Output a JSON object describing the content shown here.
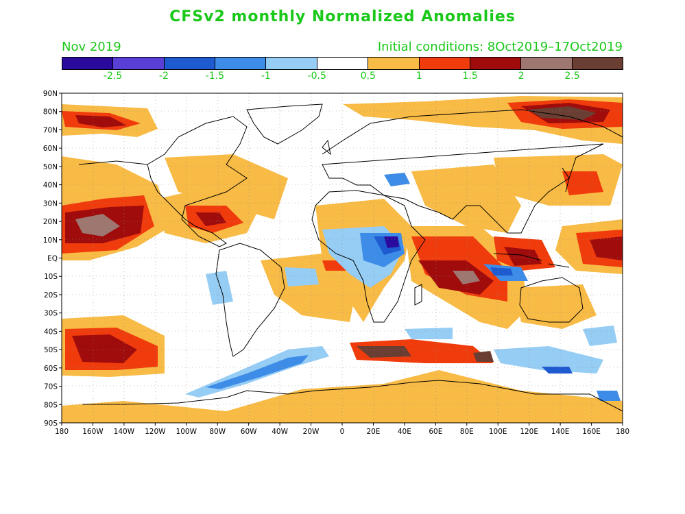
{
  "title": "CFSv2 monthly Normalized Anomalies",
  "period": "Nov 2019",
  "initial_conditions": "Initial conditions: 8Oct2019–17Oct2019",
  "colors": {
    "text": "#19c819",
    "background": "#ffffff",
    "land_outline": "#000000"
  },
  "colorbar": {
    "colors": [
      "#2a0a9c",
      "#5a3fd6",
      "#1e5bd0",
      "#3c8ce8",
      "#96cdf5",
      "#ffffff",
      "#f8bb45",
      "#f03c0c",
      "#a00c0c",
      "#9e7870",
      "#6a3e32"
    ],
    "labels": [
      "-2.5",
      "-2",
      "-1.5",
      "-1",
      "-0.5",
      "0.5",
      "1",
      "1.5",
      "2",
      "2.5"
    ]
  },
  "axes": {
    "lat_labels": [
      "90N",
      "80N",
      "70N",
      "60N",
      "50N",
      "40N",
      "30N",
      "20N",
      "10N",
      "EQ",
      "10S",
      "20S",
      "30S",
      "40S",
      "50S",
      "60S",
      "70S",
      "80S",
      "90S"
    ],
    "lon_labels": [
      "180",
      "160W",
      "140W",
      "120W",
      "100W",
      "80W",
      "60W",
      "40W",
      "20W",
      "0",
      "20E",
      "40E",
      "60E",
      "80E",
      "100E",
      "120E",
      "140E",
      "160E",
      "180"
    ]
  },
  "anomaly_regions": [
    {
      "region": "North Pacific subtropics",
      "level": 2.5
    },
    {
      "region": "Northeast Pacific near 20N 140W",
      "level": 2.5
    },
    {
      "region": "Western Indian Ocean",
      "level": 2
    },
    {
      "region": "Central Africa",
      "level": -2.5
    },
    {
      "region": "Tropical Indian Ocean near Sumatra",
      "level": -2
    },
    {
      "region": "Arctic north of Siberia",
      "level": 2.5
    },
    {
      "region": "South Pacific 50S",
      "level": 2
    },
    {
      "region": "Southern Ocean south of Africa",
      "level": 2.5
    },
    {
      "region": "Southern Ocean south of South America",
      "level": -1.5
    },
    {
      "region": "Antarctica",
      "level": 0.5
    }
  ]
}
